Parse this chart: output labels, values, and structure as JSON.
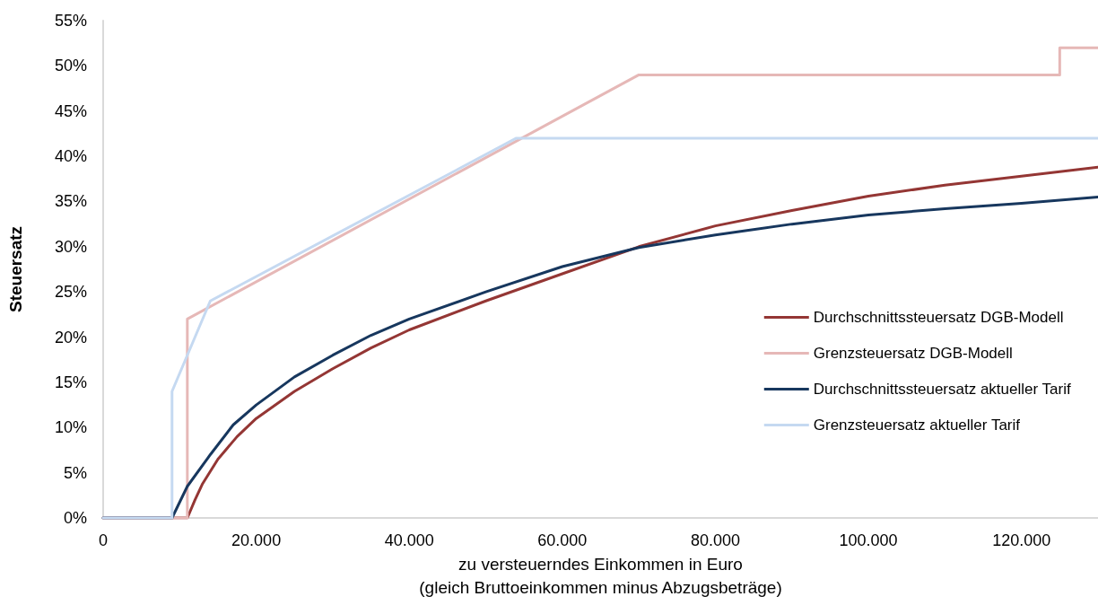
{
  "chart_data": {
    "type": "line",
    "xlabel": "zu versteuerndes Einkommen in Euro\n(gleich Bruttoeinkommen minus Abzugsbeträge)",
    "ylabel": "Steuersatz",
    "xlim": [
      0,
      130000
    ],
    "xticks": [
      0,
      {
        "value": 20000,
        "label": "20.000"
      },
      {
        "value": 40000,
        "label": "40.000"
      },
      {
        "value": 60000,
        "label": "60.000"
      },
      {
        "value": 80000,
        "label": "80.000"
      },
      {
        "value": 100000,
        "label": "100.000"
      },
      {
        "value": 120000,
        "label": "120.000"
      }
    ],
    "ylim": [
      0,
      55
    ],
    "yticks": [
      {
        "value": 0,
        "label": "0%"
      },
      {
        "value": 5,
        "label": "5%"
      },
      {
        "value": 10,
        "label": "10%"
      },
      {
        "value": 15,
        "label": "15%"
      },
      {
        "value": 20,
        "label": "20%"
      },
      {
        "value": 25,
        "label": "25%"
      },
      {
        "value": 30,
        "label": "30%"
      },
      {
        "value": 35,
        "label": "35%"
      },
      {
        "value": 40,
        "label": "40%"
      },
      {
        "value": 45,
        "label": "45%"
      },
      {
        "value": 50,
        "label": "50%"
      },
      {
        "value": 55,
        "label": "55%"
      }
    ],
    "grid": false,
    "legend": "right",
    "marker": "none",
    "line_style": "solid",
    "series": [
      {
        "name": "Durchschnittssteuersatz DGB-Modell",
        "color": "#943634",
        "x": [
          0,
          11000,
          12000,
          13000,
          15000,
          17500,
          20000,
          25000,
          30000,
          35000,
          40000,
          50000,
          60000,
          70000,
          80000,
          90000,
          100000,
          110000,
          120000,
          130000
        ],
        "values": [
          0,
          0,
          2,
          3.8,
          6.5,
          9,
          11,
          14,
          16.5,
          18.8,
          20.8,
          24,
          27,
          30,
          32.3,
          34,
          35.6,
          36.8,
          37.8,
          38.8
        ]
      },
      {
        "name": "Grenzsteuersatz DGB-Modell",
        "color": "#e6b8b7",
        "x": [
          0,
          11000,
          11000,
          70000,
          125000,
          125000,
          130000
        ],
        "values": [
          0,
          0,
          22,
          49,
          49,
          52,
          52
        ]
      },
      {
        "name": "Durchschnittssteuersatz aktueller Tarif",
        "color": "#17375e",
        "x": [
          0,
          9000,
          11000,
          14000,
          17000,
          20000,
          25000,
          30000,
          35000,
          40000,
          50000,
          60000,
          70000,
          80000,
          90000,
          100000,
          110000,
          120000,
          130000
        ],
        "values": [
          0,
          0,
          3.5,
          7,
          10.3,
          12.5,
          15.6,
          18,
          20.2,
          22,
          25,
          27.8,
          29.9,
          31.3,
          32.5,
          33.5,
          34.2,
          34.8,
          35.5
        ]
      },
      {
        "name": "Grenzsteuersatz aktueller Tarif",
        "color": "#c5d9f1",
        "x": [
          0,
          9000,
          9000,
          14000,
          54000,
          130000
        ],
        "values": [
          0,
          0,
          14,
          24,
          42,
          42
        ]
      }
    ]
  }
}
